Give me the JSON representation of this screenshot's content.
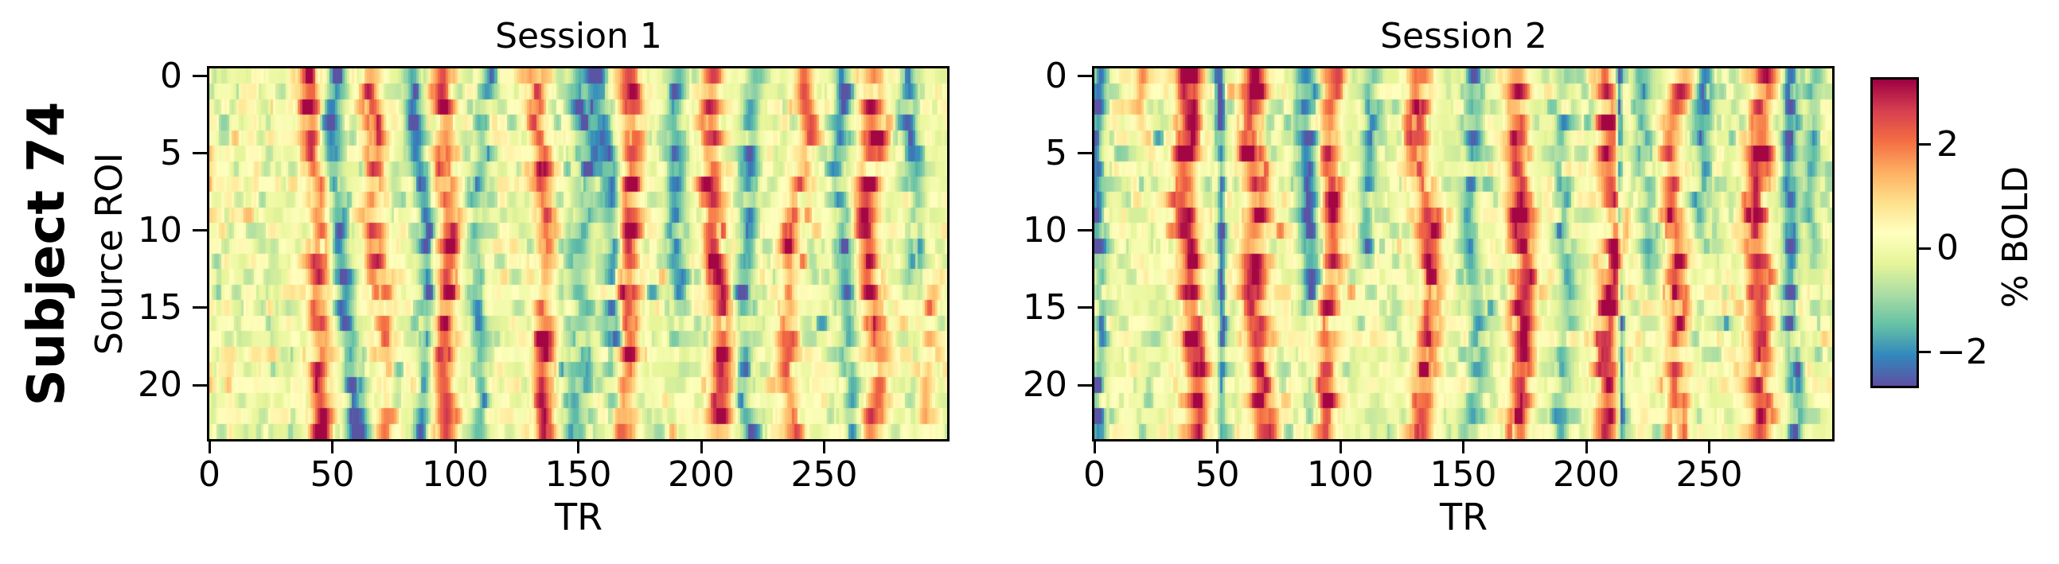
{
  "figure": {
    "row_label": "Subject 74",
    "background_color": "#ffffff",
    "text_color": "#000000"
  },
  "chart_data": [
    {
      "type": "heatmap",
      "title": "Session 1",
      "xlabel": "TR",
      "ylabel": "Source ROI",
      "x_ticks": [
        0,
        50,
        100,
        150,
        200,
        250
      ],
      "y_ticks": [
        0,
        5,
        10,
        15,
        20
      ],
      "n_rows": 24,
      "n_cols": 300,
      "x_range": [
        0,
        300
      ],
      "row_range": [
        0,
        23
      ],
      "colormap": "Spectral_r",
      "grid": false,
      "seed": 7401,
      "noise_sd": 0.5,
      "positive_bands": [
        {
          "tr": 0,
          "amp": 1.4,
          "width": 1.2,
          "wobble": 0.6
        },
        {
          "tr": 40,
          "amp": 2.6,
          "width": 3.2
        },
        {
          "tr": 66,
          "amp": 2.2,
          "width": 3.0,
          "rows": [
            0,
            12
          ]
        },
        {
          "tr": 76,
          "amp": 1.3,
          "width": 3.0,
          "rows": [
            13,
            23
          ]
        },
        {
          "tr": 96,
          "amp": 2.5,
          "width": 3.2
        },
        {
          "tr": 131,
          "amp": 2.5,
          "width": 3.2
        },
        {
          "tr": 172,
          "amp": 2.7,
          "width": 3.4
        },
        {
          "tr": 206,
          "amp": 2.5,
          "width": 3.4
        },
        {
          "tr": 240,
          "amp": 1.9,
          "width": 3.0
        },
        {
          "tr": 271,
          "amp": 2.5,
          "width": 3.8
        },
        {
          "tr": 295,
          "amp": 1.3,
          "width": 2.5,
          "rows": [
            14,
            23
          ]
        }
      ],
      "negative_bands": [
        {
          "tr": 54,
          "amp": -2.3,
          "width": 2.8
        },
        {
          "tr": 84,
          "amp": -1.9,
          "width": 2.4
        },
        {
          "tr": 112,
          "amp": -1.5,
          "width": 2.4
        },
        {
          "tr": 150,
          "amp": -1.3,
          "width": 4.0
        },
        {
          "tr": 160,
          "amp": -2.1,
          "width": 3.0
        },
        {
          "tr": 190,
          "amp": -1.5,
          "width": 2.6,
          "rows": [
            0,
            14
          ]
        },
        {
          "tr": 222,
          "amp": -1.6,
          "width": 2.6
        },
        {
          "tr": 256,
          "amp": -1.9,
          "width": 2.6
        },
        {
          "tr": 286,
          "amp": -1.5,
          "width": 2.6,
          "rows": [
            0,
            12
          ]
        }
      ]
    },
    {
      "type": "heatmap",
      "title": "Session 2",
      "xlabel": "TR",
      "ylabel": "Source ROI",
      "x_ticks": [
        0,
        50,
        100,
        150,
        200,
        250
      ],
      "y_ticks": [
        0,
        5,
        10,
        15,
        20
      ],
      "n_rows": 24,
      "n_cols": 300,
      "x_range": [
        0,
        300
      ],
      "row_range": [
        0,
        23
      ],
      "colormap": "Spectral_r",
      "grid": false,
      "seed": 7402,
      "noise_sd": 0.5,
      "positive_bands": [
        {
          "tr": 17,
          "amp": 1.4,
          "width": 2.2,
          "rows": [
            0,
            2
          ]
        },
        {
          "tr": 36,
          "amp": 2.7,
          "width": 3.6
        },
        {
          "tr": 67,
          "amp": 2.7,
          "width": 3.6
        },
        {
          "tr": 98,
          "amp": 2.4,
          "width": 3.4
        },
        {
          "tr": 131,
          "amp": 2.3,
          "width": 3.4
        },
        {
          "tr": 173,
          "amp": 2.8,
          "width": 3.4
        },
        {
          "tr": 207,
          "amp": 2.5,
          "width": 3.4
        },
        {
          "tr": 239,
          "amp": 2.3,
          "width": 3.4
        },
        {
          "tr": 272,
          "amp": 2.6,
          "width": 3.8
        }
      ],
      "negative_bands": [
        {
          "tr": 4,
          "amp": -1.9,
          "width": 2.2
        },
        {
          "tr": 50,
          "amp": -2.3,
          "width": 1.2,
          "wobble": 0.25
        },
        {
          "tr": 85,
          "amp": -2.0,
          "width": 3.2,
          "rows": [
            0,
            13
          ]
        },
        {
          "tr": 89,
          "amp": -1.2,
          "width": 3.0,
          "rows": [
            14,
            23
          ]
        },
        {
          "tr": 112,
          "amp": -1.4,
          "width": 2.4,
          "rows": [
            0,
            11
          ]
        },
        {
          "tr": 155,
          "amp": -1.4,
          "width": 2.8
        },
        {
          "tr": 191,
          "amp": -1.3,
          "width": 2.6
        },
        {
          "tr": 213,
          "amp": -2.2,
          "width": 0.9,
          "wobble": 0.2
        },
        {
          "tr": 222,
          "amp": -1.3,
          "width": 3.0,
          "rows": [
            0,
            12
          ]
        },
        {
          "tr": 250,
          "amp": -1.3,
          "width": 2.4,
          "rows": [
            0,
            9
          ]
        },
        {
          "tr": 283,
          "amp": -1.9,
          "width": 2.2,
          "wobble": 0.5
        },
        {
          "tr": 294,
          "amp": -1.2,
          "width": 2.2,
          "rows": [
            0,
            10
          ]
        }
      ]
    }
  ],
  "colorbar": {
    "label": "% BOLD",
    "tick_labels": [
      "2",
      "0",
      "−2"
    ],
    "tick_values": [
      2,
      0,
      -2
    ],
    "vmin": -2.65,
    "vmax": 3.25,
    "colormap": "Spectral_r",
    "stops_low_to_high": [
      "#5e4fa2",
      "#3288bd",
      "#66c2a5",
      "#abdda4",
      "#e6f598",
      "#ffffbf",
      "#fee08b",
      "#fdae61",
      "#f46d43",
      "#d53e4f",
      "#9e0142"
    ]
  }
}
